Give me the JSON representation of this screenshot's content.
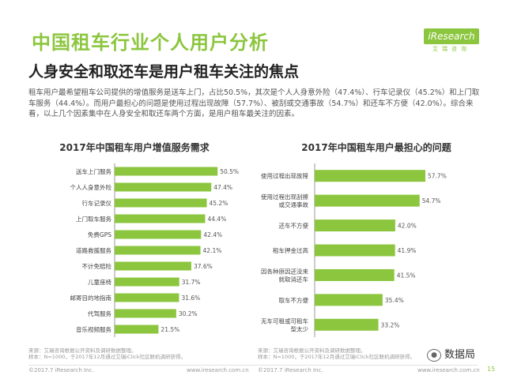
{
  "header": {
    "title": "中国租车行业个人用户分析",
    "logo_text": "iResearch",
    "logo_sub": "艾瑞咨询"
  },
  "subtitle": "人身安全和取还车是用户租车关注的焦点",
  "description": "租车用户最希望租车公司提供的增值服务是送车上门，占比50.5%，其次是个人人身意外险（47.4%）、行车记录仪（45.2%）和上门取车服务（44.4%）。而用户最担心的问题是使用过程出现故障（57.7%）、被刮或交通事故（54.7%）和还车不方便（42.0%）。综合来看，以上几个因素集中在人身安全和取还车两个方面，是用户租车最关注的因素。",
  "chart_data": [
    {
      "type": "bar",
      "orientation": "horizontal",
      "title": "2017年中国租车用户增值服务需求",
      "categories": [
        "送车上门服务",
        "个人人身意外险",
        "行车记录仪",
        "上门取车服务",
        "免费GPS",
        "道路救援服务",
        "不计免赔险",
        "儿童座椅",
        "邮寄目的地指南",
        "代驾服务",
        "音乐视频服务"
      ],
      "values": [
        50.5,
        47.4,
        45.2,
        44.4,
        42.4,
        42.1,
        37.6,
        31.7,
        31.6,
        30.2,
        21.5
      ],
      "labels": [
        "50.5%",
        "47.4%",
        "45.2%",
        "44.4%",
        "42.4%",
        "42.1%",
        "37.6%",
        "31.7%",
        "31.6%",
        "30.2%",
        "21.5%"
      ],
      "color": "#8cc63f"
    },
    {
      "type": "bar",
      "orientation": "horizontal",
      "title": "2017年中国租车用户最担心的问题",
      "categories": [
        [
          "使用过程出现故障"
        ],
        [
          "使用过程出现刮擦",
          "或交通事故"
        ],
        [
          "还车不方便"
        ],
        [
          "租车押金过高"
        ],
        [
          "因各种原因还没来",
          "就取消还车"
        ],
        [
          "取车不方便"
        ],
        [
          "无车可租或可租车",
          "型太少"
        ]
      ],
      "values": [
        57.7,
        54.7,
        42.0,
        41.9,
        41.5,
        35.4,
        33.2
      ],
      "labels": [
        "57.7%",
        "54.7%",
        "42.0%",
        "41.9%",
        "41.5%",
        "35.4%",
        "33.2%"
      ],
      "color": "#8cc63f"
    }
  ],
  "sources": {
    "left": [
      "来源：艾瑞咨询根据公开资料及调研数据整理。",
      "样本：N=1000，于2017年12月通过艾瑞iClick社区联机调研获得。"
    ],
    "right": [
      "来源：艾瑞咨询根据公开资料及调研数据整理。",
      "样本：N=1000，于2017年12月通过艾瑞iClick社区联机调研获得。"
    ]
  },
  "footer": {
    "left1": "©2017.7 iResearch Inc.",
    "left2": "www.iresearch.com.cn",
    "right1": "©2017.7 iResearch Inc.",
    "right2": "www.iresearch.com.cn"
  },
  "wechat_label": "数据局",
  "page_number": "15"
}
